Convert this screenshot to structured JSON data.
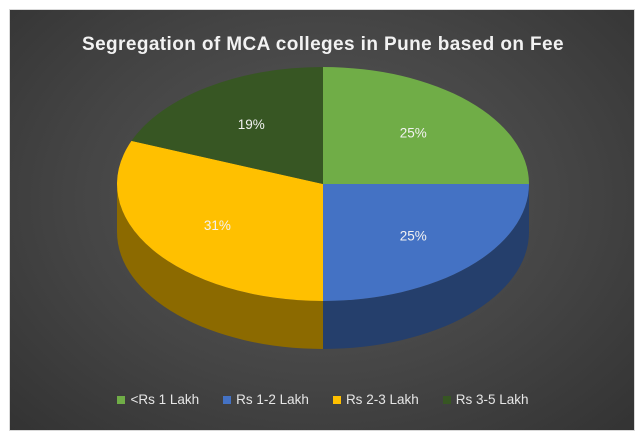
{
  "chart_data": {
    "type": "pie",
    "title": "Segregation of MCA colleges in Pune based on Fee",
    "categories": [
      "<Rs 1 Lakh",
      "Rs 1-2 Lakh",
      "Rs 2-3 Lakh",
      "Rs 3-5 Lakh"
    ],
    "values": [
      25,
      25,
      31,
      19
    ],
    "data_labels": [
      "25%",
      "25%",
      "31%",
      "19%"
    ],
    "colors": [
      "#70ad47",
      "#4472c4",
      "#ffc000",
      "#375623"
    ],
    "legend_position": "bottom",
    "style": "3d"
  }
}
